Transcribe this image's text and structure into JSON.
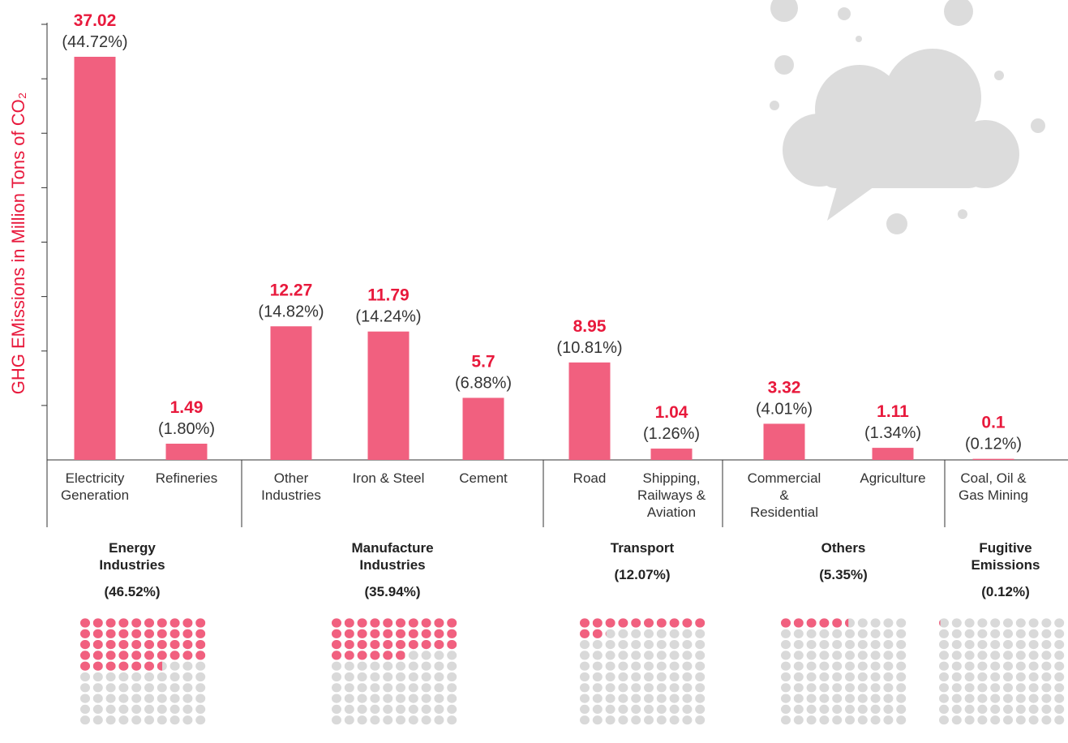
{
  "chart_data": {
    "type": "bar",
    "y_label": "GHG EMissions in Million Tons of CO₂",
    "ylim": [
      0,
      40
    ],
    "yticks": [
      5,
      10,
      15,
      20,
      25,
      30,
      35,
      40
    ],
    "bar_color": "#f1607f",
    "label_color": "#e8193c",
    "waffle_empty_color": "#d9d9d9",
    "groups": [
      {
        "name": "Energy Industries",
        "share": 46.52,
        "share_label": "(46.52%)",
        "categories": [
          "Electricity Generation",
          "Refineries"
        ],
        "values": [
          37.02,
          1.49
        ],
        "percent_labels": [
          "(44.72%)",
          "(1.80%)"
        ]
      },
      {
        "name": "Manufacture Industries",
        "share": 35.94,
        "share_label": "(35.94%)",
        "categories": [
          "Other Industries",
          "Iron & Steel",
          "Cement"
        ],
        "values": [
          12.27,
          11.79,
          5.7
        ],
        "percent_labels": [
          "(14.82%)",
          "(14.24%)",
          "(6.88%)"
        ]
      },
      {
        "name": "Transport",
        "share": 12.07,
        "share_label": "(12.07%)",
        "categories": [
          "Road",
          "Shipping, Railways & Aviation"
        ],
        "values": [
          8.95,
          1.04
        ],
        "percent_labels": [
          "(10.81%)",
          "(1.26%)"
        ]
      },
      {
        "name": "Others",
        "share": 5.35,
        "share_label": "(5.35%)",
        "categories": [
          "Commercial & Residential",
          "Agriculture"
        ],
        "values": [
          3.32,
          1.11
        ],
        "percent_labels": [
          "(4.01%)",
          "(1.34%)"
        ]
      },
      {
        "name": "Fugitive Emissions",
        "share": 0.12,
        "share_label": "(0.12%)",
        "categories": [
          "Coal, Oil & Gas Mining"
        ],
        "values": [
          0.1
        ],
        "percent_labels": [
          "(0.12%)"
        ]
      }
    ]
  }
}
